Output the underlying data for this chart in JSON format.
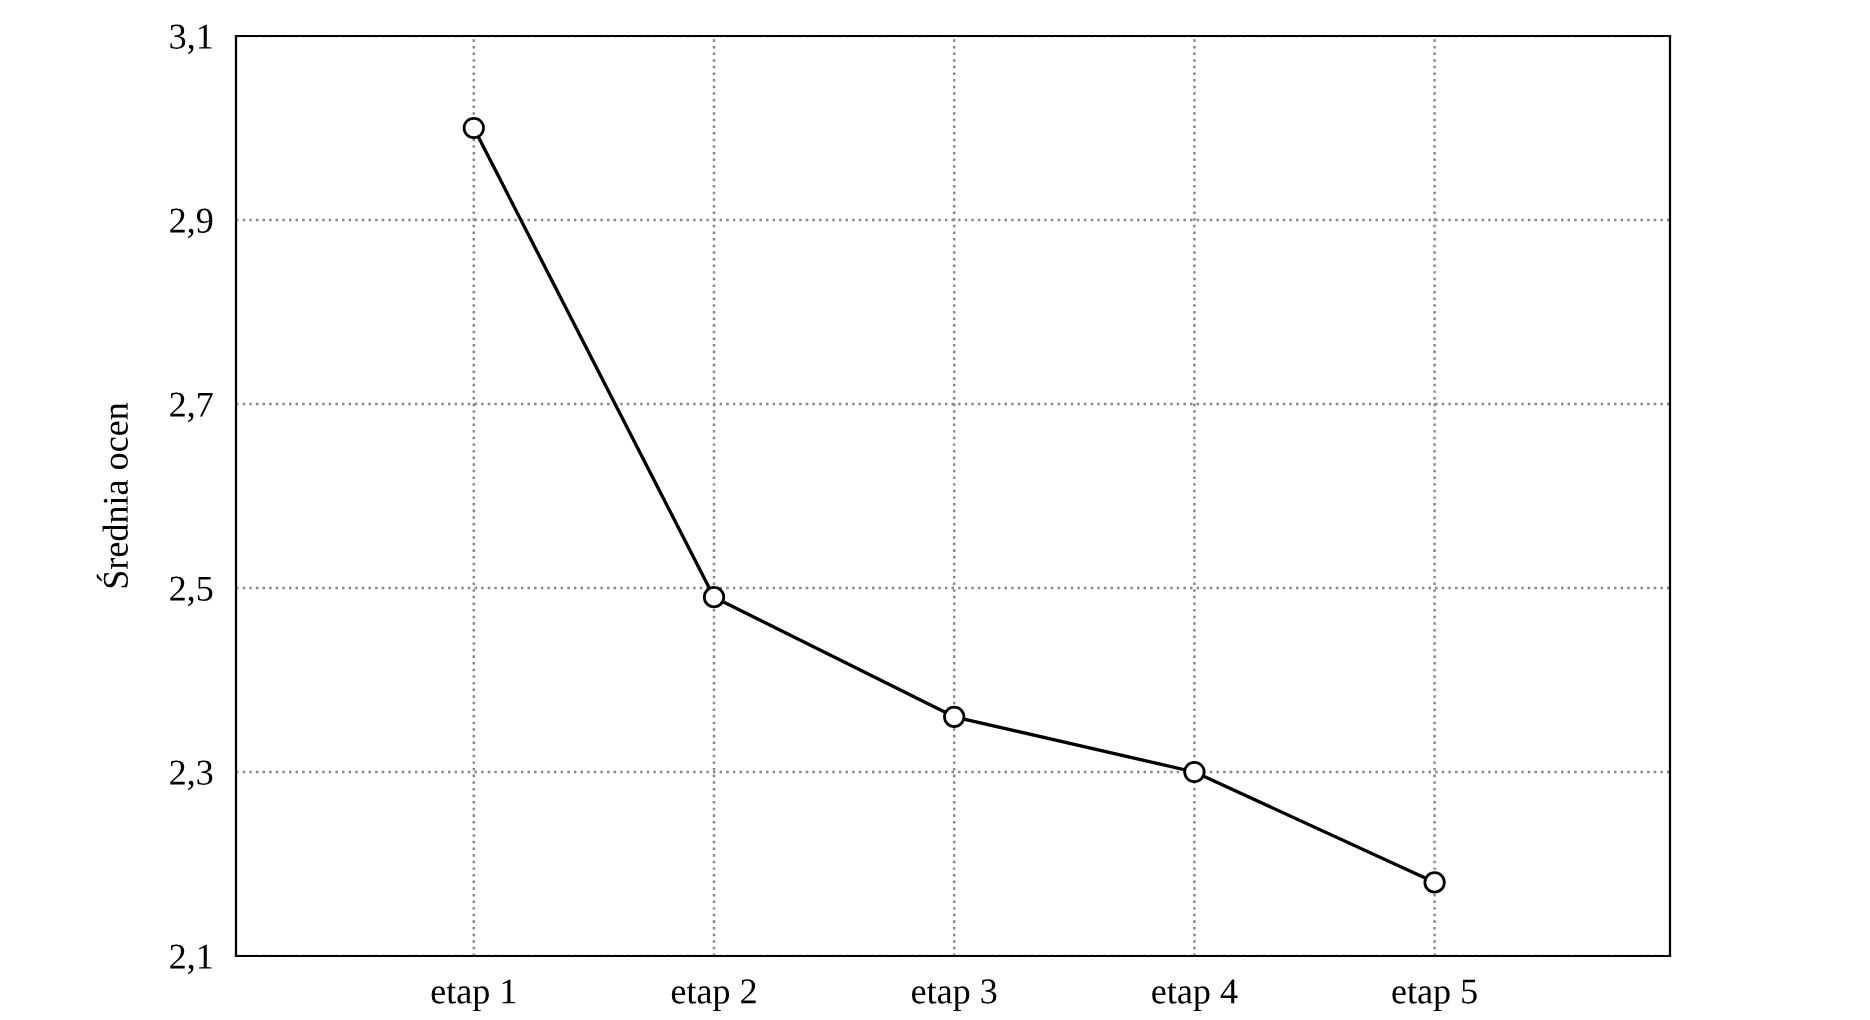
{
  "chart_data": {
    "type": "line",
    "ylabel": "Średnia ocen",
    "categories": [
      "etap 1",
      "etap 2",
      "etap 3",
      "etap 4",
      "etap 5"
    ],
    "series": [
      {
        "color": "#000000",
        "values": [
          3.0,
          2.49,
          2.36,
          2.3,
          2.18
        ]
      }
    ],
    "ylim": [
      2.1,
      3.1
    ],
    "yticks": [
      {
        "value": 2.1,
        "label": "2,1"
      },
      {
        "value": 2.3,
        "label": "2,3"
      },
      {
        "value": 2.5,
        "label": "2,5"
      },
      {
        "value": 2.7,
        "label": "2,7"
      },
      {
        "value": 2.9,
        "label": "2,9"
      },
      {
        "value": 3.1,
        "label": "3,1"
      }
    ],
    "grid": true,
    "marker": "circle",
    "line_style": "solid",
    "legend": false
  }
}
